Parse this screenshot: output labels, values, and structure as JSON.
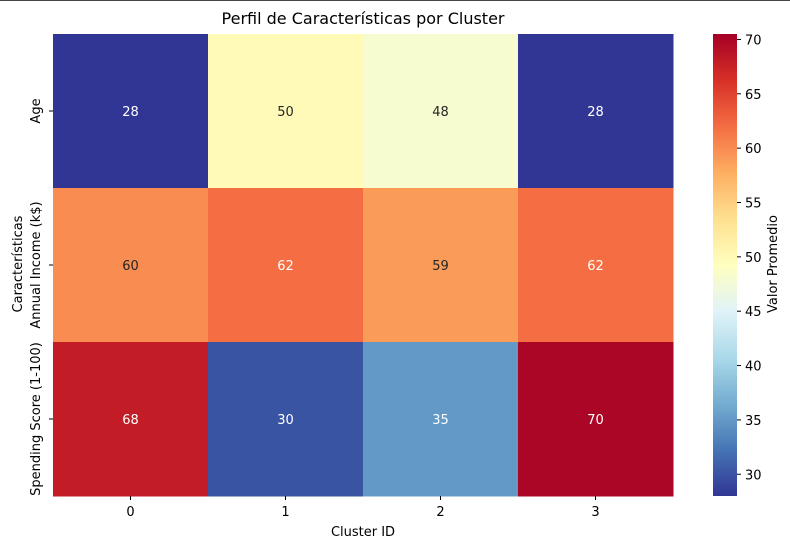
{
  "chart_data": {
    "type": "heatmap",
    "title": "Perfil de Características por Cluster",
    "xlabel": "Cluster ID",
    "ylabel": "Características",
    "x_categories": [
      "0",
      "1",
      "2",
      "3"
    ],
    "y_categories": [
      "Age",
      "Annual Income (k$)",
      "Spending Score (1-100)"
    ],
    "values": [
      [
        28,
        50,
        48,
        28
      ],
      [
        60,
        62,
        59,
        62
      ],
      [
        68,
        30,
        35,
        70
      ]
    ],
    "colorbar": {
      "label": "Valor Promedio",
      "range": [
        28,
        70.5
      ],
      "ticks": [
        "30",
        "35",
        "40",
        "45",
        "50",
        "55",
        "60",
        "65",
        "70"
      ],
      "colormap": "RdYlBu_r"
    }
  }
}
